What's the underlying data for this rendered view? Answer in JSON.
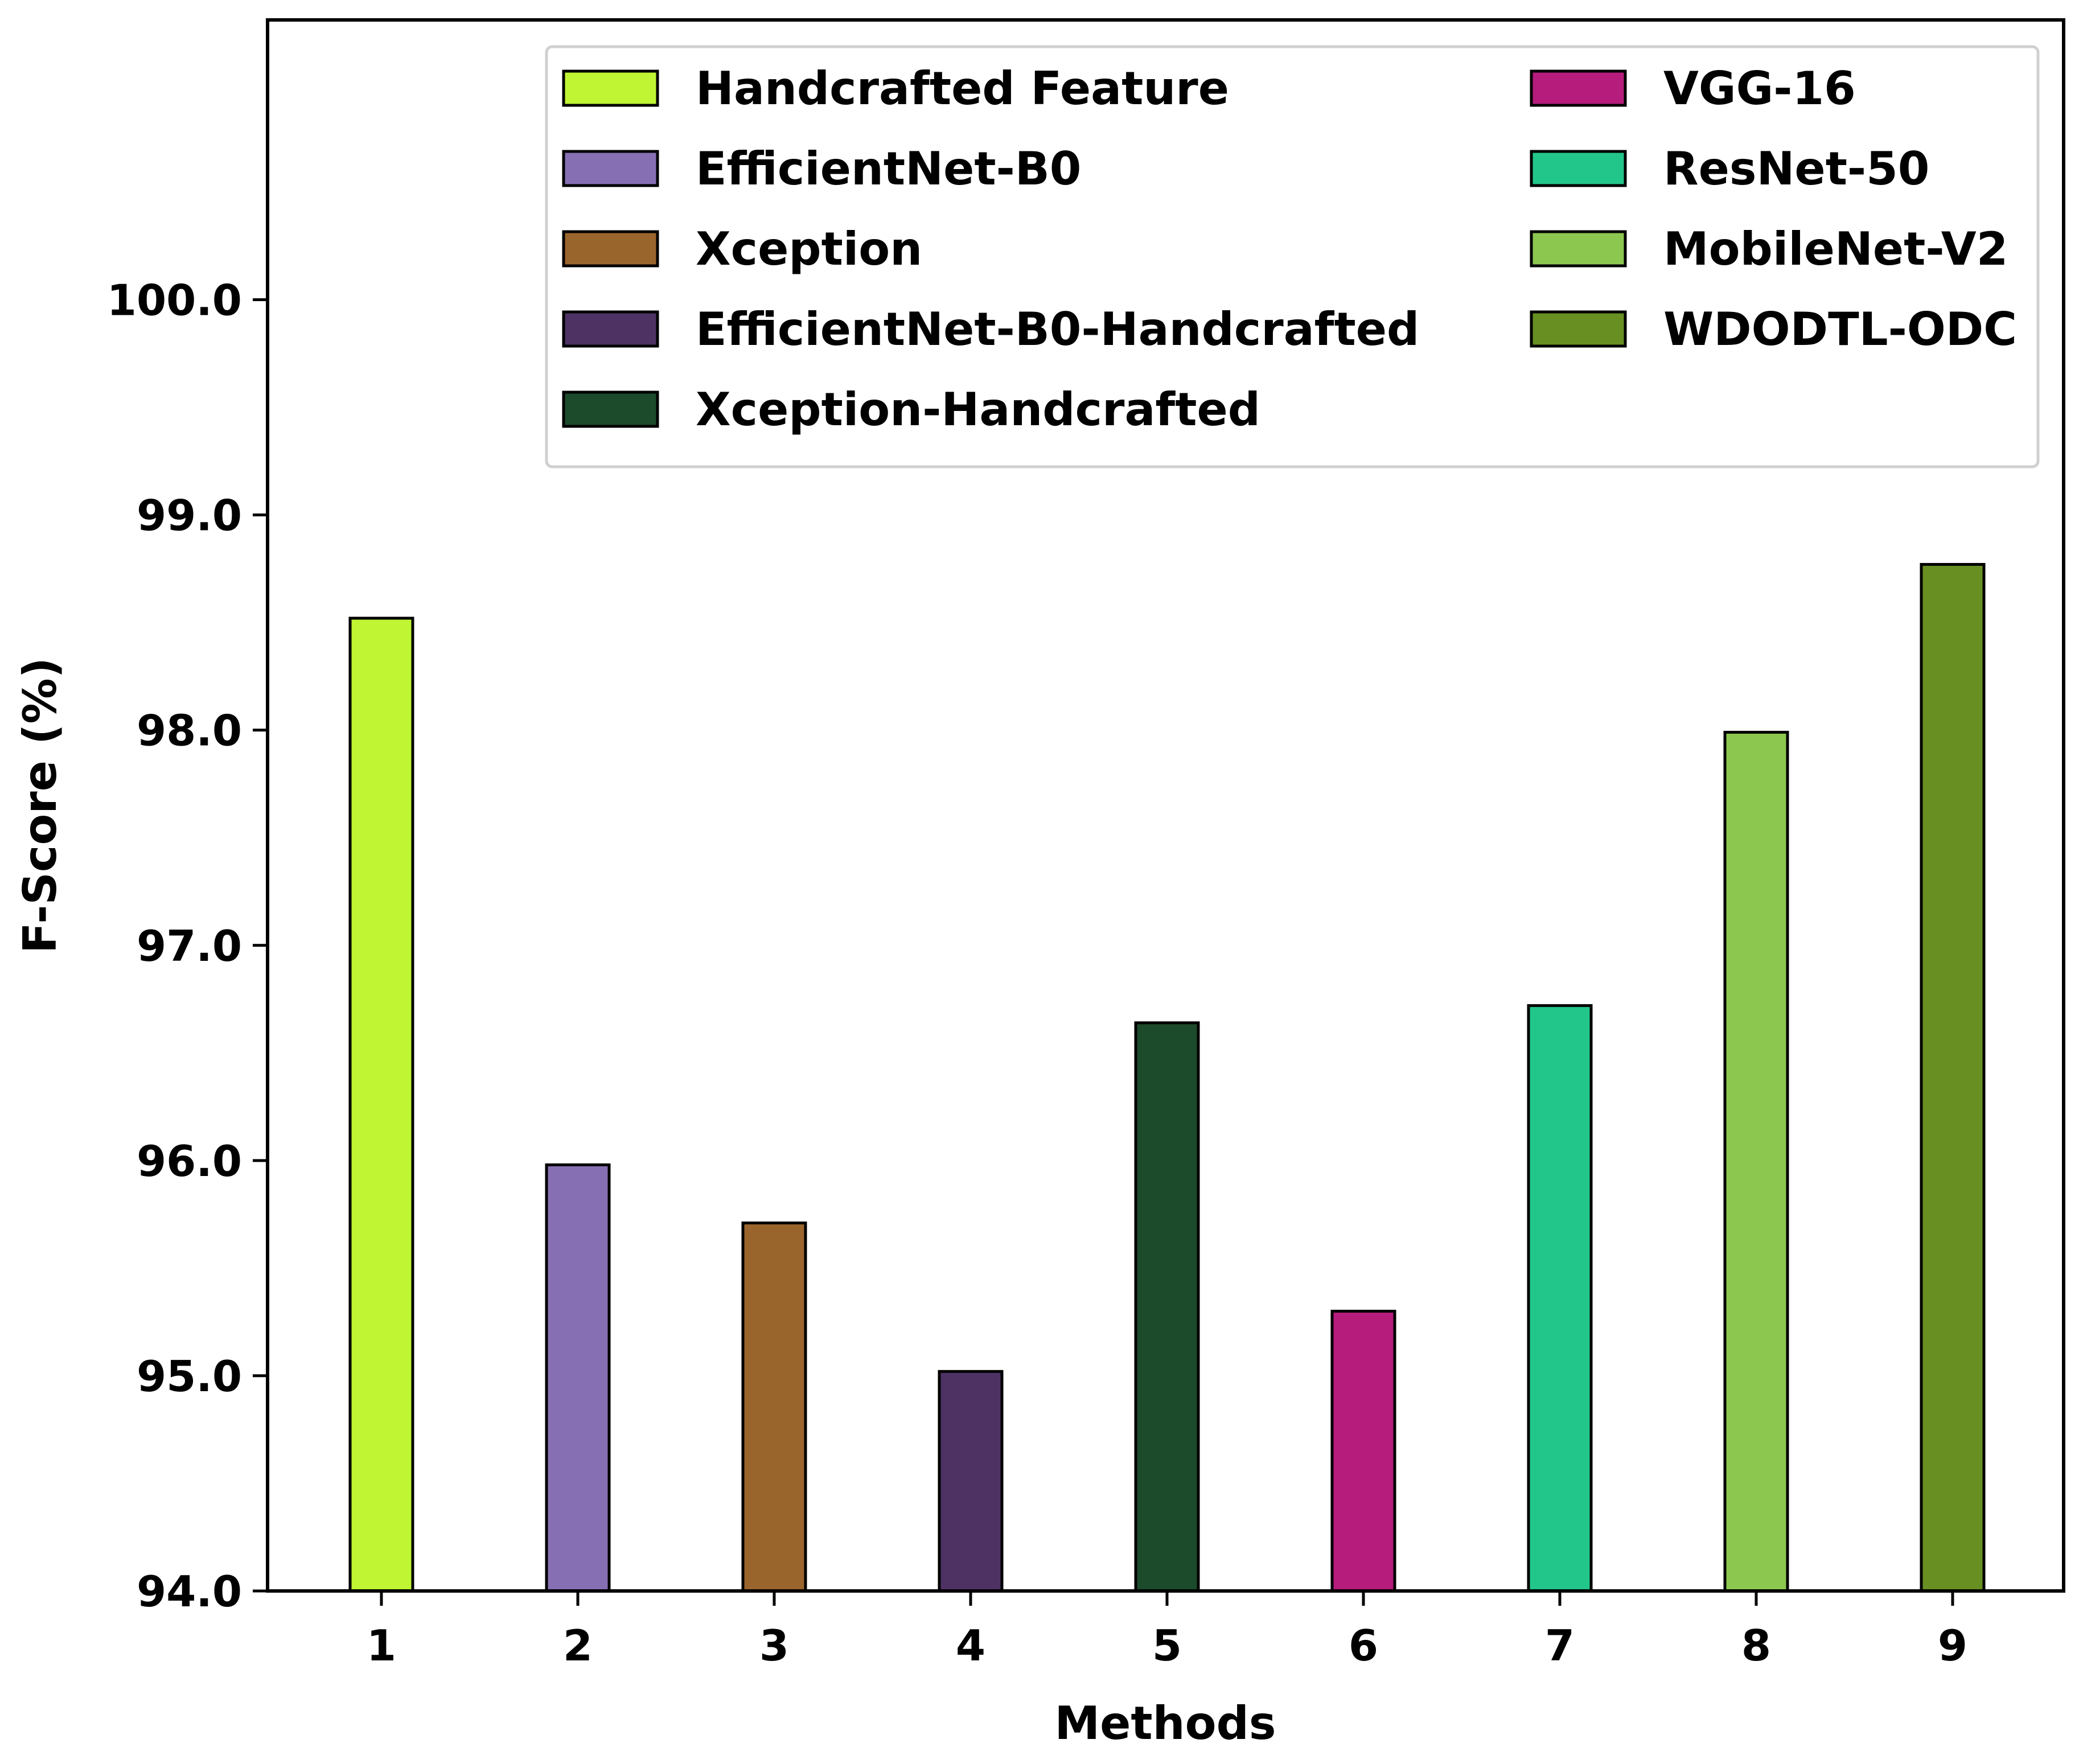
{
  "chart_data": {
    "type": "bar",
    "title": "",
    "xlabel": "Methods",
    "ylabel": "F-Score (%)",
    "ylim": [
      94.0,
      101.3
    ],
    "yticks": [
      94.0,
      95.0,
      96.0,
      97.0,
      98.0,
      99.0,
      100.0
    ],
    "ytick_labels": [
      "94.0",
      "95.0",
      "96.0",
      "97.0",
      "98.0",
      "99.0",
      "100.0"
    ],
    "categories": [
      "1",
      "2",
      "3",
      "4",
      "5",
      "6",
      "7",
      "8",
      "9"
    ],
    "grid": false,
    "legend_position": "top-right",
    "series": [
      {
        "name": "Handcrafted Feature",
        "value": 98.52,
        "color": "#bff533"
      },
      {
        "name": "EfficientNet-B0",
        "value": 95.98,
        "color": "#8670b3"
      },
      {
        "name": "Xception",
        "value": 95.71,
        "color": "#9a652d"
      },
      {
        "name": "EfficientNet-B0-Handcrafted",
        "value": 95.02,
        "color": "#4f3264"
      },
      {
        "name": "Xception-Handcrafted",
        "value": 96.64,
        "color": "#1c4b2c"
      },
      {
        "name": "VGG-16",
        "value": 95.3,
        "color": "#b51c7b"
      },
      {
        "name": "ResNet-50",
        "value": 96.72,
        "color": "#23c68a"
      },
      {
        "name": "MobileNet-V2",
        "value": 97.99,
        "color": "#8cc74f"
      },
      {
        "name": "WDODTL-ODC",
        "value": 98.77,
        "color": "#678f22"
      }
    ]
  }
}
